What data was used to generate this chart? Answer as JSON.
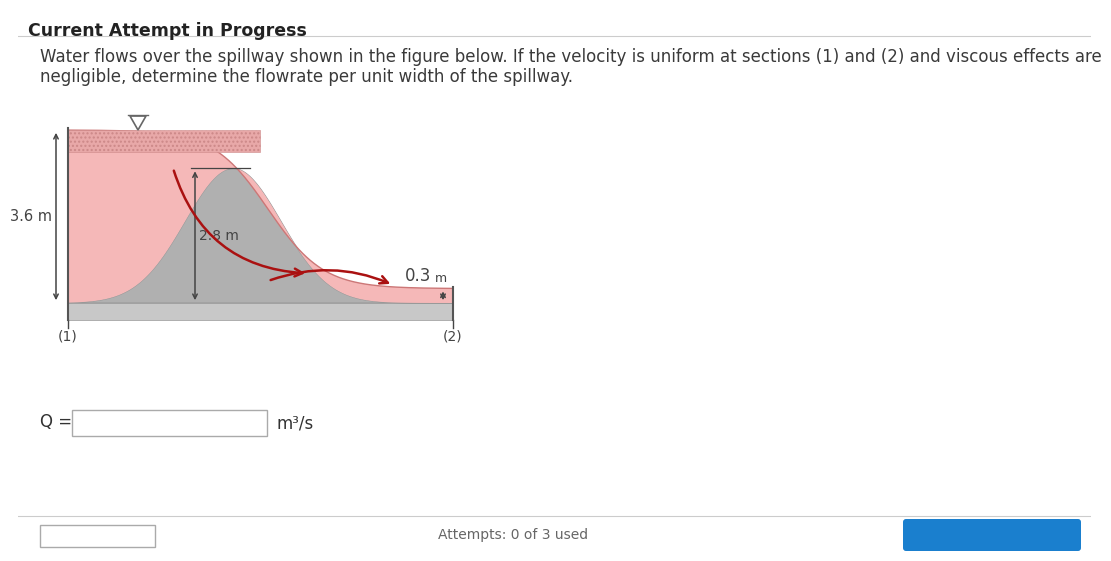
{
  "title": "Current Attempt in Progress",
  "problem_text_line1": "Water flows over the spillway shown in the figure below. If the velocity is uniform at sections (1) and (2) and viscous effects are",
  "problem_text_line2": "negligible, determine the flowrate per unit width of the spillway.",
  "bg_color": "#ffffff",
  "water_fill_color": "#f5b8b8",
  "water_hatch_color": "#e8a0a0",
  "ground_color": "#c8c8c8",
  "hump_color": "#b0b0b0",
  "label_36": "3.6 m",
  "label_28": "2.8 m",
  "label_03": "0.3",
  "label_03b": "m",
  "label_1": "(1)",
  "label_2": "(2)",
  "q_label": "Q =",
  "unit_label": "m³/s",
  "text_color": "#333333",
  "arrow_color": "#aa1111",
  "dim_line_color": "#444444",
  "title_fontsize": 12.5,
  "body_fontsize": 12,
  "fig_width": 10.73,
  "fig_height": 5.41
}
